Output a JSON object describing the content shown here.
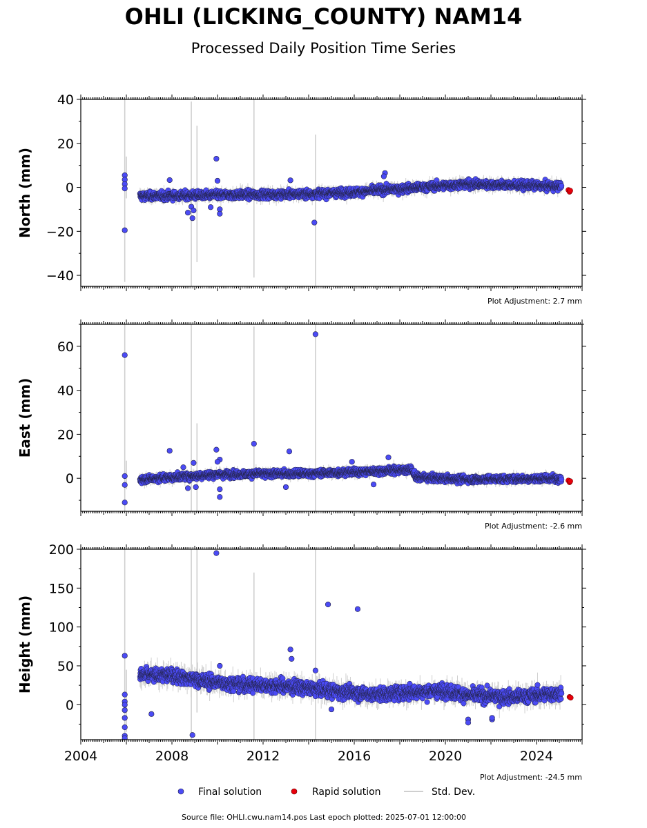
{
  "title": "OHLI (LICKING_COUNTY) NAM14",
  "subtitle": "Processed Daily Position Time Series",
  "legend": {
    "final": "Final solution",
    "rapid": "Rapid solution",
    "stddev": "Std. Dev."
  },
  "footer": "Source file: OHLI.cwu.nam14.pos  Last epoch plotted: 2025-07-01 12:00:00",
  "colors": {
    "final": "#4b4bf5",
    "final_edge": "#222244",
    "rapid": "#e8000b",
    "stddev": "#cfcfcf",
    "band": "#111111"
  },
  "chart_data": [
    {
      "type": "scatter",
      "ylabel": "North (mm)",
      "adjustment": "Plot Adjustment: 2.7 mm",
      "ylim": [
        -45,
        40
      ],
      "yticks": [
        -40,
        -20,
        0,
        20,
        40
      ],
      "ytick_labels": [
        "−40",
        "−20",
        "0",
        "20",
        "40"
      ],
      "xlim": [
        2004,
        2026
      ],
      "trend": [
        [
          2006.6,
          -4.0
        ],
        [
          2010,
          -3.5
        ],
        [
          2014,
          -3.0
        ],
        [
          2016,
          -2.2
        ],
        [
          2018.5,
          -0.3
        ],
        [
          2021,
          1.5
        ],
        [
          2025.1,
          0.5
        ]
      ],
      "band_halfwidth": 2.3,
      "outliers": [
        [
          2005.93,
          5.5
        ],
        [
          2005.93,
          3.5
        ],
        [
          2005.93,
          1.5
        ],
        [
          2005.93,
          -0.5
        ],
        [
          2005.93,
          -19.5
        ],
        [
          2007.9,
          3.3
        ],
        [
          2008.85,
          -8.8
        ],
        [
          2008.9,
          -14.0
        ],
        [
          2008.95,
          -10.5
        ],
        [
          2008.7,
          -11.5
        ],
        [
          2009.7,
          -9.0
        ],
        [
          2009.95,
          13.0
        ],
        [
          2010.0,
          3.0
        ],
        [
          2010.1,
          -10.0
        ],
        [
          2010.1,
          -12.0
        ],
        [
          2013.2,
          3.2
        ],
        [
          2014.25,
          -16.0
        ],
        [
          2017.35,
          6.5
        ],
        [
          2017.3,
          5.0
        ]
      ],
      "rapid": [
        [
          2025.4,
          -1.2
        ],
        [
          2025.45,
          -2.0
        ],
        [
          2025.48,
          -1.5
        ]
      ],
      "stddev_bars": [
        [
          2005.93,
          -43,
          40
        ],
        [
          2008.85,
          -45,
          39
        ],
        [
          2009.1,
          -34,
          28
        ],
        [
          2011.6,
          -41,
          40
        ],
        [
          2014.3,
          -45,
          24
        ],
        [
          2006.0,
          -5,
          14
        ]
      ]
    },
    {
      "type": "scatter",
      "ylabel": "East (mm)",
      "adjustment": "Plot Adjustment: -2.6 mm",
      "ylim": [
        -15,
        70
      ],
      "yticks": [
        0,
        20,
        40,
        60
      ],
      "ytick_labels": [
        "0",
        "20",
        "40",
        "60"
      ],
      "xlim": [
        2004,
        2026
      ],
      "trend": [
        [
          2006.6,
          -0.5
        ],
        [
          2010,
          1.8
        ],
        [
          2014,
          2.2
        ],
        [
          2016,
          2.8
        ],
        [
          2018.5,
          4.0
        ],
        [
          2018.7,
          0.5
        ],
        [
          2021,
          -0.5
        ],
        [
          2025.1,
          0.0
        ]
      ],
      "band_halfwidth": 2.0,
      "outliers": [
        [
          2005.93,
          56.0
        ],
        [
          2005.93,
          1.0
        ],
        [
          2005.93,
          -3.0
        ],
        [
          2005.93,
          -11.0
        ],
        [
          2007.9,
          12.5
        ],
        [
          2008.5,
          5.0
        ],
        [
          2008.7,
          -4.5
        ],
        [
          2008.95,
          7.0
        ],
        [
          2009.05,
          -4.0
        ],
        [
          2009.95,
          13.0
        ],
        [
          2010.1,
          8.5
        ],
        [
          2010.0,
          7.5
        ],
        [
          2010.1,
          -5.0
        ],
        [
          2010.1,
          -8.5
        ],
        [
          2011.6,
          15.7
        ],
        [
          2013.15,
          12.2
        ],
        [
          2013.0,
          -4.0
        ],
        [
          2014.3,
          65.5
        ],
        [
          2015.9,
          7.5
        ],
        [
          2017.5,
          9.5
        ],
        [
          2016.85,
          -2.8
        ]
      ],
      "rapid": [
        [
          2025.4,
          -1.0
        ],
        [
          2025.45,
          -1.8
        ],
        [
          2025.48,
          -1.3
        ]
      ],
      "stddev_bars": [
        [
          2005.93,
          -15,
          70
        ],
        [
          2008.85,
          -15,
          70
        ],
        [
          2009.1,
          -15,
          25
        ],
        [
          2011.6,
          -15,
          69
        ],
        [
          2014.3,
          -15,
          70
        ],
        [
          2006.0,
          -5,
          8
        ]
      ]
    },
    {
      "type": "scatter",
      "ylabel": "Height (mm)",
      "adjustment": "Plot Adjustment: -24.5 mm",
      "ylim": [
        -45,
        200
      ],
      "yticks": [
        0,
        50,
        100,
        150,
        200
      ],
      "ytick_labels": [
        "0",
        "50",
        "100",
        "150",
        "200"
      ],
      "xlim": [
        2004,
        2026
      ],
      "xticks": [
        2004,
        2008,
        2012,
        2016,
        2020,
        2024
      ],
      "trend": [
        [
          2006.6,
          38
        ],
        [
          2008,
          38
        ],
        [
          2009.5,
          30
        ],
        [
          2011,
          26
        ],
        [
          2013,
          24
        ],
        [
          2015,
          18
        ],
        [
          2017,
          13
        ],
        [
          2018.5,
          16
        ],
        [
          2020,
          18
        ],
        [
          2021,
          12
        ],
        [
          2023,
          10
        ],
        [
          2025.1,
          15
        ]
      ],
      "band_halfwidth": 11,
      "outliers": [
        [
          2005.93,
          63
        ],
        [
          2005.93,
          13
        ],
        [
          2005.93,
          4
        ],
        [
          2005.93,
          0
        ],
        [
          2005.93,
          -7
        ],
        [
          2005.93,
          -17
        ],
        [
          2005.93,
          -29
        ],
        [
          2005.93,
          -40
        ],
        [
          2005.93,
          -43
        ],
        [
          2007.1,
          -12
        ],
        [
          2008.9,
          -39
        ],
        [
          2009.95,
          195
        ],
        [
          2010.1,
          50
        ],
        [
          2013.2,
          71
        ],
        [
          2013.25,
          59
        ],
        [
          2014.3,
          44
        ],
        [
          2014.85,
          129
        ],
        [
          2015.0,
          -6
        ],
        [
          2016.15,
          123
        ],
        [
          2021.0,
          -19
        ],
        [
          2021.0,
          -23
        ],
        [
          2022.05,
          -19
        ],
        [
          2022.05,
          -17
        ]
      ],
      "rapid": [
        [
          2025.45,
          10.0
        ],
        [
          2025.5,
          9.0
        ]
      ],
      "stddev_bars": [
        [
          2005.93,
          -45,
          200
        ],
        [
          2008.85,
          -45,
          200
        ],
        [
          2009.1,
          -10,
          200
        ],
        [
          2011.6,
          -45,
          170
        ],
        [
          2014.3,
          -45,
          200
        ],
        [
          2006.0,
          -35,
          45
        ]
      ]
    }
  ]
}
